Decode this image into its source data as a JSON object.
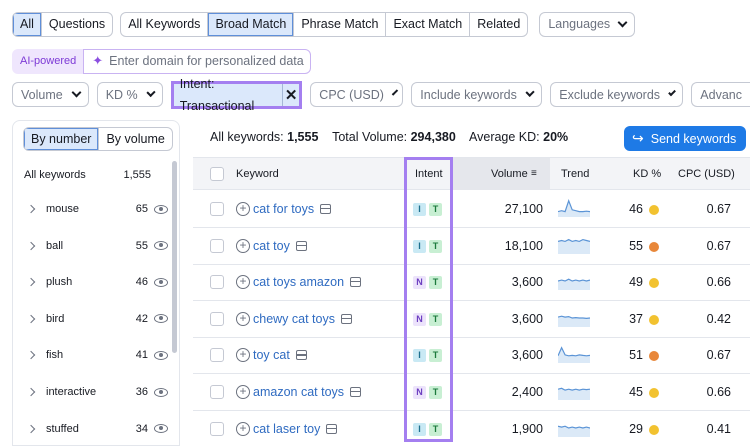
{
  "tabs_left": [
    "All",
    "Questions"
  ],
  "tabs_active_left": 0,
  "match_tabs": [
    "All Keywords",
    "Broad Match",
    "Phrase Match",
    "Exact Match",
    "Related"
  ],
  "match_active": 1,
  "languages": {
    "placeholder": "Languages"
  },
  "ai": {
    "badge": "AI-powered",
    "placeholder": "Enter domain for personalized data"
  },
  "filters": {
    "volume": "Volume",
    "kd": "KD %",
    "intent": "Intent: Transactional",
    "cpc": "CPC (USD)",
    "include": "Include keywords",
    "exclude": "Exclude keywords",
    "advanced": "Advanc"
  },
  "left_panel": {
    "by_number": "By number",
    "by_volume": "By volume",
    "header_label": "All keywords",
    "header_count": "1,555",
    "groups": [
      {
        "name": "mouse",
        "count": "65"
      },
      {
        "name": "ball",
        "count": "55"
      },
      {
        "name": "plush",
        "count": "46"
      },
      {
        "name": "bird",
        "count": "42"
      },
      {
        "name": "fish",
        "count": "41"
      },
      {
        "name": "interactive",
        "count": "36"
      },
      {
        "name": "stuffed",
        "count": "34"
      }
    ]
  },
  "summary": {
    "all_keywords_label": "All keywords:",
    "all_keywords_value": "1,555",
    "total_volume_label": "Total Volume:",
    "total_volume_value": "294,380",
    "avg_kd_label": "Average KD:",
    "avg_kd_value": "20%"
  },
  "send_button": "Send keywords",
  "table": {
    "headers": {
      "keyword": "Keyword",
      "intent": "Intent",
      "volume": "Volume",
      "trend": "Trend",
      "kd": "KD %",
      "cpc": "CPC (USD)"
    },
    "rows": [
      {
        "keyword": "cat for toys",
        "intents": [
          "I",
          "T"
        ],
        "volume": "27,100",
        "kd": "46",
        "kd_color": "#f2c230",
        "cpc": "0.67",
        "trend": [
          0.3,
          0.35,
          0.3,
          0.9,
          0.4,
          0.35,
          0.3,
          0.3,
          0.32,
          0.3
        ]
      },
      {
        "keyword": "cat toy",
        "intents": [
          "I",
          "T"
        ],
        "volume": "18,100",
        "kd": "55",
        "kd_color": "#e8873a",
        "cpc": "0.67",
        "trend": [
          0.7,
          0.75,
          0.7,
          0.8,
          0.7,
          0.75,
          0.7,
          0.8,
          0.75,
          0.7
        ]
      },
      {
        "keyword": "cat toys amazon",
        "intents": [
          "N",
          "T"
        ],
        "volume": "3,600",
        "kd": "49",
        "kd_color": "#f2c230",
        "cpc": "0.66",
        "trend": [
          0.5,
          0.55,
          0.5,
          0.6,
          0.5,
          0.55,
          0.5,
          0.55,
          0.5,
          0.55
        ]
      },
      {
        "keyword": "chewy cat toys",
        "intents": [
          "N",
          "T"
        ],
        "volume": "3,600",
        "kd": "37",
        "kd_color": "#f2c230",
        "cpc": "0.42",
        "trend": [
          0.55,
          0.6,
          0.55,
          0.58,
          0.5,
          0.52,
          0.5,
          0.5,
          0.48,
          0.5
        ]
      },
      {
        "keyword": "toy cat",
        "intents": [
          "I",
          "T"
        ],
        "volume": "3,600",
        "kd": "51",
        "kd_color": "#e8873a",
        "cpc": "0.67",
        "trend": [
          0.4,
          0.85,
          0.45,
          0.4,
          0.42,
          0.4,
          0.45,
          0.42,
          0.4,
          0.42
        ]
      },
      {
        "keyword": "amazon cat toys",
        "intents": [
          "N",
          "T"
        ],
        "volume": "2,400",
        "kd": "45",
        "kd_color": "#f2c230",
        "cpc": "0.66",
        "trend": [
          0.6,
          0.65,
          0.55,
          0.6,
          0.55,
          0.6,
          0.55,
          0.6,
          0.58,
          0.6
        ]
      },
      {
        "keyword": "cat laser toy",
        "intents": [
          "I",
          "T"
        ],
        "volume": "1,900",
        "kd": "29",
        "kd_color": "#f2c230",
        "cpc": "0.41",
        "trend": [
          0.6,
          0.55,
          0.6,
          0.5,
          0.55,
          0.5,
          0.55,
          0.5,
          0.55,
          0.5
        ]
      }
    ]
  }
}
